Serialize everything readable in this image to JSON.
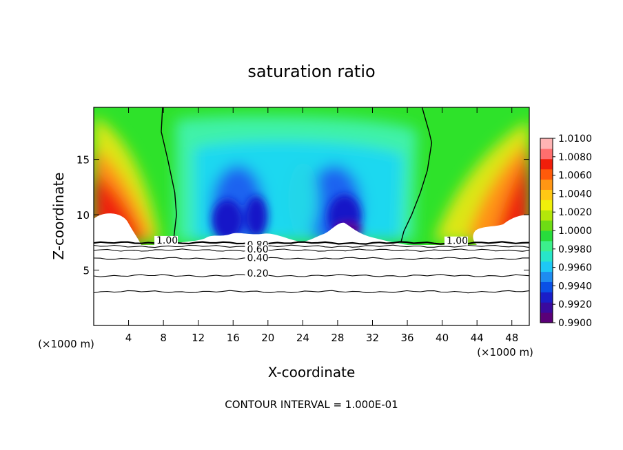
{
  "chart_data": {
    "type": "heatmap",
    "title": "saturation ratio",
    "xlabel": "X-coordinate",
    "ylabel": "Z-coordinate",
    "x_unit_left": "(×1000 m)",
    "x_unit_right": "(×1000 m)",
    "xlim": [
      0,
      50
    ],
    "ylim": [
      0,
      19.7
    ],
    "x_ticks": [
      4,
      8,
      12,
      16,
      20,
      24,
      28,
      32,
      36,
      40,
      44,
      48
    ],
    "y_ticks": [
      5,
      10,
      15
    ],
    "footer": "CONTOUR INTERVAL = 1.000E-01",
    "colorbar": {
      "min": 0.99,
      "max": 1.01,
      "labels": [
        "1.0100",
        "1.0080",
        "1.0060",
        "1.0040",
        "1.0020",
        "1.0000",
        "0.9980",
        "0.9960",
        "0.9940",
        "0.9920",
        "0.9900"
      ],
      "colors": [
        "#5a0078",
        "#3a0a9e",
        "#1a1ec8",
        "#0a50e6",
        "#1e8cf0",
        "#1ec8f5",
        "#28e6c8",
        "#3cf08c",
        "#28dc3c",
        "#6edc14",
        "#b4e60a",
        "#f0f00a",
        "#ffc814",
        "#ff9614",
        "#ff5a0a",
        "#f01e0a",
        "#ff6e6e",
        "#ffb4b4"
      ]
    },
    "contour_lines": [
      {
        "label": "1.00",
        "z": 7.45
      },
      {
        "label": "0.80",
        "z": 7.15
      },
      {
        "label": "0.60",
        "z": 6.8
      },
      {
        "label": "0.40",
        "z": 6.05
      },
      {
        "label": "0.20",
        "z": 4.5
      },
      {
        "label": "",
        "z": 3.05
      }
    ],
    "contour_labels": [
      {
        "text": "1.00",
        "x": 7.2,
        "z": 7.4
      },
      {
        "text": "0.80",
        "x": 17.6,
        "z": 7.0
      },
      {
        "text": "0.60",
        "x": 17.6,
        "z": 6.6
      },
      {
        "text": "0.40",
        "x": 17.6,
        "z": 5.8
      },
      {
        "text": "0.20",
        "x": 17.6,
        "z": 4.4
      },
      {
        "text": "1.00",
        "x": 40.5,
        "z": 7.35
      }
    ],
    "s1_boundaries": [
      {
        "name": "left",
        "points": [
          [
            7.9,
            19.7
          ],
          [
            7.75,
            17.5
          ],
          [
            8.5,
            15
          ],
          [
            9.3,
            12
          ],
          [
            9.5,
            10
          ],
          [
            9.2,
            8
          ],
          [
            9.0,
            7.6
          ]
        ]
      },
      {
        "name": "right",
        "points": [
          [
            37.7,
            19.7
          ],
          [
            38.5,
            17.5
          ],
          [
            38.8,
            16.5
          ],
          [
            38.3,
            14
          ],
          [
            37.5,
            12
          ],
          [
            36.5,
            10
          ],
          [
            35.6,
            8.5
          ],
          [
            35.3,
            7.6
          ]
        ]
      }
    ]
  }
}
